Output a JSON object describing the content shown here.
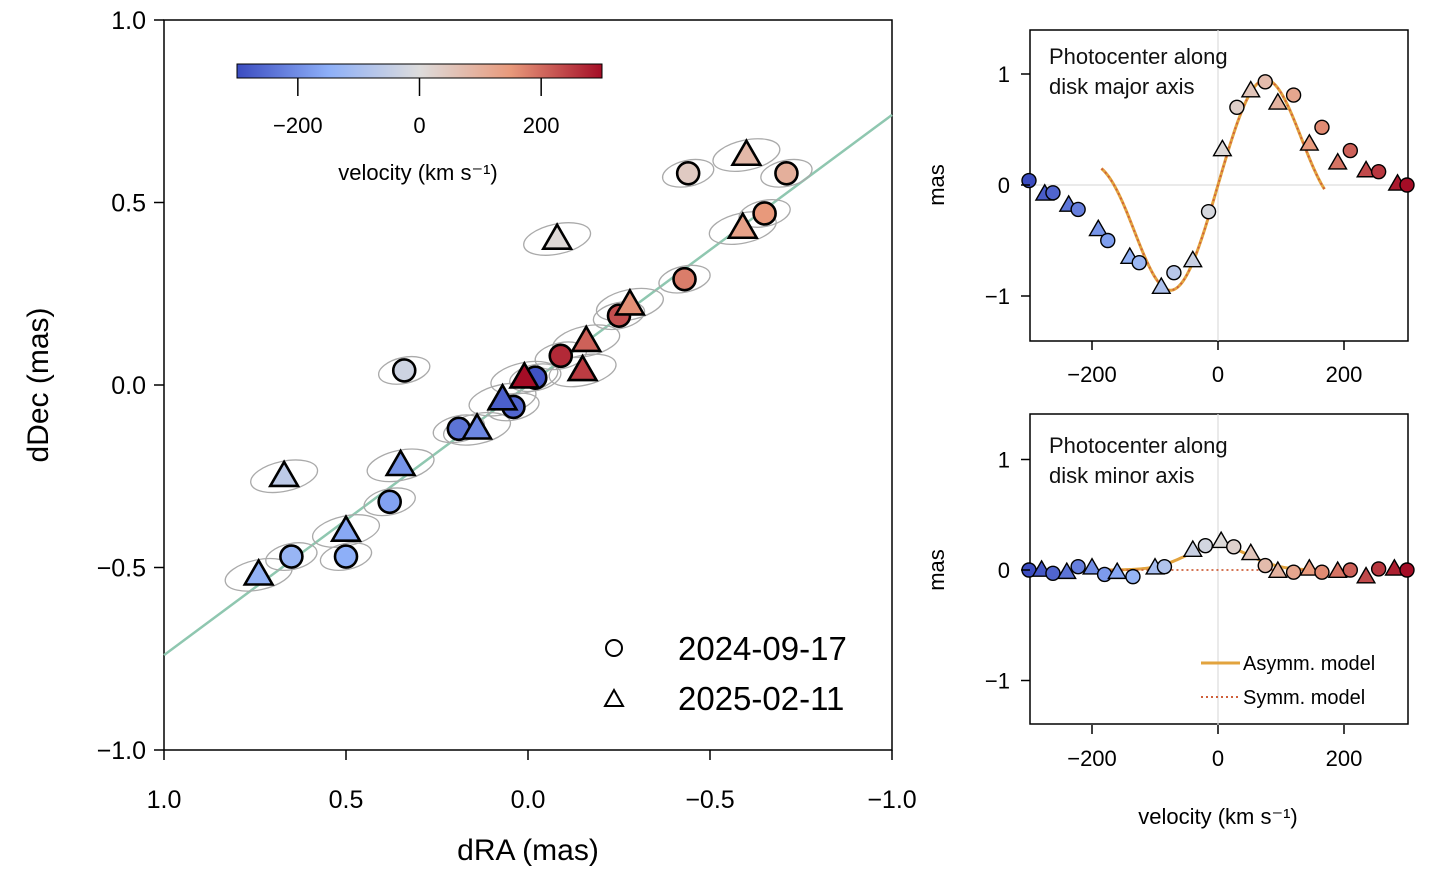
{
  "chart_data": [
    {
      "type": "scatter",
      "name": "main",
      "xlabel": "dRA (mas)",
      "ylabel": "dDec (mas)",
      "xlim": [
        1.0,
        -1.0
      ],
      "ylim": [
        -1.0,
        1.0
      ],
      "xticks": [
        "1.0",
        "0.5",
        "0.0",
        "−0.5",
        "−1.0"
      ],
      "xtick_values": [
        1.0,
        0.5,
        0.0,
        -0.5,
        -1.0
      ],
      "yticks": [
        "1.0",
        "0.5",
        "0.0",
        "−0.5",
        "−1.0"
      ],
      "ytick_values": [
        1.0,
        0.5,
        0.0,
        -0.5,
        -1.0
      ],
      "fit_line": {
        "points": [
          [
            1.0,
            -0.74
          ],
          [
            -1.0,
            0.74
          ]
        ],
        "color": "#8fc7b0"
      },
      "colorbar": {
        "label": "velocity (km s⁻¹)",
        "range": [
          -300,
          300
        ],
        "ticks": [
          "−200",
          "0",
          "200"
        ],
        "tick_values": [
          -200,
          0,
          200
        ]
      },
      "legend": [
        {
          "marker": "circle",
          "label": "2024-09-17"
        },
        {
          "marker": "triangle",
          "label": "2025-02-11"
        }
      ],
      "points": [
        {
          "m": "c",
          "x": 0.65,
          "y": -0.47,
          "v": -130
        },
        {
          "m": "c",
          "x": 0.5,
          "y": -0.47,
          "v": -150
        },
        {
          "m": "c",
          "x": 0.38,
          "y": -0.32,
          "v": -170
        },
        {
          "m": "c",
          "x": 0.34,
          "y": 0.04,
          "v": -30
        },
        {
          "m": "c",
          "x": 0.19,
          "y": -0.12,
          "v": -240
        },
        {
          "m": "c",
          "x": 0.04,
          "y": -0.06,
          "v": -260
        },
        {
          "m": "c",
          "x": -0.02,
          "y": 0.02,
          "v": -290
        },
        {
          "m": "c",
          "x": -0.09,
          "y": 0.08,
          "v": 270
        },
        {
          "m": "c",
          "x": -0.25,
          "y": 0.19,
          "v": 230
        },
        {
          "m": "c",
          "x": -0.43,
          "y": 0.29,
          "v": 180
        },
        {
          "m": "c",
          "x": -0.65,
          "y": 0.47,
          "v": 150
        },
        {
          "m": "c",
          "x": -0.44,
          "y": 0.58,
          "v": 40
        },
        {
          "m": "c",
          "x": -0.71,
          "y": 0.58,
          "v": 100
        },
        {
          "m": "t",
          "x": 0.74,
          "y": -0.52,
          "v": -140
        },
        {
          "m": "t",
          "x": 0.67,
          "y": -0.25,
          "v": -60
        },
        {
          "m": "t",
          "x": 0.5,
          "y": -0.4,
          "v": -160
        },
        {
          "m": "t",
          "x": 0.35,
          "y": -0.22,
          "v": -190
        },
        {
          "m": "t",
          "x": 0.14,
          "y": -0.12,
          "v": -210
        },
        {
          "m": "t",
          "x": 0.07,
          "y": -0.04,
          "v": -270
        },
        {
          "m": "t",
          "x": 0.01,
          "y": 0.02,
          "v": 300
        },
        {
          "m": "t",
          "x": -0.15,
          "y": 0.04,
          "v": 250
        },
        {
          "m": "t",
          "x": -0.16,
          "y": 0.12,
          "v": 210
        },
        {
          "m": "t",
          "x": -0.28,
          "y": 0.22,
          "v": 160
        },
        {
          "m": "t",
          "x": -0.08,
          "y": 0.4,
          "v": 10
        },
        {
          "m": "t",
          "x": -0.59,
          "y": 0.43,
          "v": 130
        },
        {
          "m": "t",
          "x": -0.6,
          "y": 0.63,
          "v": 80
        }
      ]
    },
    {
      "type": "scatter",
      "name": "major",
      "title": "Photocenter along\ndisk major axis",
      "ylabel": "mas",
      "xlim": [
        -300,
        300
      ],
      "ylim": [
        -1.4,
        1.4
      ],
      "xticks": [
        "−200",
        "0",
        "200"
      ],
      "xtick_values": [
        -200,
        0,
        200
      ],
      "yticks": [
        "1",
        "0",
        "−1"
      ],
      "ytick_values": [
        1,
        0,
        -1
      ],
      "points": [
        {
          "m": "c",
          "v": -300,
          "y": 0.04
        },
        {
          "m": "t",
          "v": -275,
          "y": -0.08
        },
        {
          "m": "c",
          "v": -262,
          "y": -0.07
        },
        {
          "m": "t",
          "v": -237,
          "y": -0.18
        },
        {
          "m": "c",
          "v": -222,
          "y": -0.22
        },
        {
          "m": "t",
          "v": -190,
          "y": -0.4
        },
        {
          "m": "c",
          "v": -175,
          "y": -0.5
        },
        {
          "m": "t",
          "v": -140,
          "y": -0.65
        },
        {
          "m": "c",
          "v": -125,
          "y": -0.7
        },
        {
          "m": "t",
          "v": -90,
          "y": -0.92
        },
        {
          "m": "c",
          "v": -70,
          "y": -0.79
        },
        {
          "m": "t",
          "v": -40,
          "y": -0.68
        },
        {
          "m": "c",
          "v": -15,
          "y": -0.24
        },
        {
          "m": "t",
          "v": 7,
          "y": 0.32
        },
        {
          "m": "c",
          "v": 30,
          "y": 0.7
        },
        {
          "m": "t",
          "v": 52,
          "y": 0.85
        },
        {
          "m": "c",
          "v": 75,
          "y": 0.93
        },
        {
          "m": "t",
          "v": 95,
          "y": 0.74
        },
        {
          "m": "c",
          "v": 120,
          "y": 0.81
        },
        {
          "m": "t",
          "v": 145,
          "y": 0.37
        },
        {
          "m": "c",
          "v": 165,
          "y": 0.52
        },
        {
          "m": "t",
          "v": 190,
          "y": 0.2
        },
        {
          "m": "c",
          "v": 210,
          "y": 0.31
        },
        {
          "m": "t",
          "v": 235,
          "y": 0.13
        },
        {
          "m": "c",
          "v": 255,
          "y": 0.12
        },
        {
          "m": "t",
          "v": 285,
          "y": 0.01
        },
        {
          "m": "c",
          "v": 300,
          "y": 0.0
        }
      ]
    },
    {
      "type": "scatter",
      "name": "minor",
      "title": "Photocenter along\ndisk minor axis",
      "xlabel": "velocity (km s⁻¹)",
      "ylabel": "mas",
      "xlim": [
        -300,
        300
      ],
      "ylim": [
        -1.4,
        1.4
      ],
      "xticks": [
        "−200",
        "0",
        "200"
      ],
      "xtick_values": [
        -200,
        0,
        200
      ],
      "yticks": [
        "1",
        "0",
        "−1"
      ],
      "ytick_values": [
        1,
        0,
        -1
      ],
      "legend": [
        {
          "style": "solid",
          "label": "Asymm. model",
          "color": "#e2a33e"
        },
        {
          "style": "dotted",
          "label": "Symm. model",
          "color": "#d0603a"
        }
      ],
      "points": [
        {
          "m": "c",
          "v": -300,
          "y": 0.0
        },
        {
          "m": "t",
          "v": -280,
          "y": 0.0
        },
        {
          "m": "c",
          "v": -262,
          "y": -0.03
        },
        {
          "m": "t",
          "v": -240,
          "y": -0.02
        },
        {
          "m": "c",
          "v": -222,
          "y": 0.03
        },
        {
          "m": "t",
          "v": -200,
          "y": 0.02
        },
        {
          "m": "c",
          "v": -180,
          "y": -0.04
        },
        {
          "m": "t",
          "v": -160,
          "y": -0.02
        },
        {
          "m": "c",
          "v": -135,
          "y": -0.06
        },
        {
          "m": "t",
          "v": -100,
          "y": 0.02
        },
        {
          "m": "c",
          "v": -85,
          "y": 0.03
        },
        {
          "m": "t",
          "v": -40,
          "y": 0.18
        },
        {
          "m": "c",
          "v": -20,
          "y": 0.22
        },
        {
          "m": "t",
          "v": 5,
          "y": 0.26
        },
        {
          "m": "c",
          "v": 25,
          "y": 0.21
        },
        {
          "m": "t",
          "v": 52,
          "y": 0.15
        },
        {
          "m": "c",
          "v": 75,
          "y": 0.04
        },
        {
          "m": "t",
          "v": 95,
          "y": -0.01
        },
        {
          "m": "c",
          "v": 120,
          "y": -0.02
        },
        {
          "m": "t",
          "v": 145,
          "y": 0.01
        },
        {
          "m": "c",
          "v": 165,
          "y": -0.02
        },
        {
          "m": "t",
          "v": 190,
          "y": -0.01
        },
        {
          "m": "c",
          "v": 210,
          "y": 0.0
        },
        {
          "m": "t",
          "v": 235,
          "y": -0.06
        },
        {
          "m": "c",
          "v": 255,
          "y": 0.01
        },
        {
          "m": "t",
          "v": 280,
          "y": 0.01
        },
        {
          "m": "c",
          "v": 300,
          "y": 0.0
        }
      ]
    }
  ]
}
